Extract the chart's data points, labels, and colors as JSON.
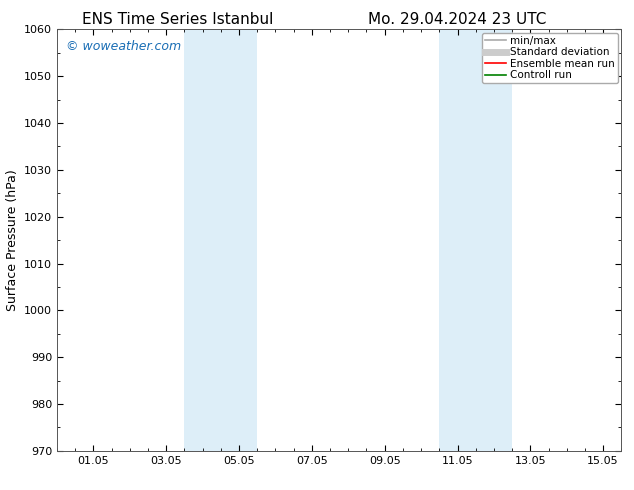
{
  "title_left": "ENS Time Series Istanbul",
  "title_right": "Mo. 29.04.2024 23 UTC",
  "ylabel": "Surface Pressure (hPa)",
  "ylim": [
    970,
    1060
  ],
  "yticks": [
    970,
    980,
    990,
    1000,
    1010,
    1020,
    1030,
    1040,
    1050,
    1060
  ],
  "xlim": [
    0.0,
    15.5
  ],
  "xtick_positions": [
    1,
    3,
    5,
    7,
    9,
    11,
    13,
    15
  ],
  "xtick_labels": [
    "01.05",
    "03.05",
    "05.05",
    "07.05",
    "09.05",
    "11.05",
    "13.05",
    "15.05"
  ],
  "shaded_bands": [
    {
      "xstart": 3.5,
      "xend": 5.5
    },
    {
      "xstart": 10.5,
      "xend": 12.5
    }
  ],
  "shade_color": "#ddeef8",
  "background_color": "#ffffff",
  "watermark": "© woweather.com",
  "watermark_color": "#1a6eb5",
  "legend_entries": [
    {
      "label": "min/max",
      "color": "#aaaaaa",
      "lw": 1.2
    },
    {
      "label": "Standard deviation",
      "color": "#cccccc",
      "lw": 5
    },
    {
      "label": "Ensemble mean run",
      "color": "#ff0000",
      "lw": 1.2
    },
    {
      "label": "Controll run",
      "color": "#008000",
      "lw": 1.2
    }
  ],
  "title_fontsize": 11,
  "tick_fontsize": 8,
  "ylabel_fontsize": 9,
  "watermark_fontsize": 9,
  "legend_fontsize": 7.5
}
